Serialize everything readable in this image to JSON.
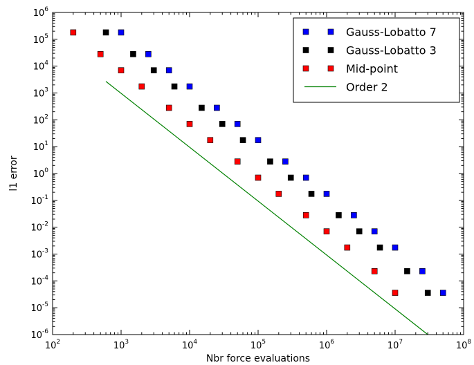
{
  "chart_data": {
    "type": "scatter",
    "xscale": "log",
    "yscale": "log",
    "xlim": [
      100,
      100000000
    ],
    "ylim": [
      1e-06,
      1000000
    ],
    "xlabel": "Nbr force evaluations",
    "ylabel": "l1 error",
    "grid": false,
    "legend_position": "top-right",
    "x_ticks": [
      {
        "base": "10",
        "exp": "2"
      },
      {
        "base": "10",
        "exp": "3"
      },
      {
        "base": "10",
        "exp": "4"
      },
      {
        "base": "10",
        "exp": "5"
      },
      {
        "base": "10",
        "exp": "6"
      },
      {
        "base": "10",
        "exp": "7"
      },
      {
        "base": "10",
        "exp": "8"
      }
    ],
    "y_ticks": [
      {
        "base": "10",
        "exp": "-6"
      },
      {
        "base": "10",
        "exp": "-5"
      },
      {
        "base": "10",
        "exp": "-4"
      },
      {
        "base": "10",
        "exp": "-3"
      },
      {
        "base": "10",
        "exp": "-2"
      },
      {
        "base": "10",
        "exp": "-1"
      },
      {
        "base": "10",
        "exp": "0"
      },
      {
        "base": "10",
        "exp": "1"
      },
      {
        "base": "10",
        "exp": "2"
      },
      {
        "base": "10",
        "exp": "3"
      },
      {
        "base": "10",
        "exp": "4"
      },
      {
        "base": "10",
        "exp": "5"
      },
      {
        "base": "10",
        "exp": "6"
      }
    ],
    "series": [
      {
        "name": "Gauss-Lobatto 7",
        "marker": "square",
        "color": "#0000ff",
        "x": [
          1000,
          2500,
          5000,
          10000,
          25000,
          50000,
          100000,
          250000,
          500000,
          1000000,
          2500000,
          5000000,
          10000000,
          25000000,
          50000000
        ],
        "y": [
          180000,
          28000,
          7000,
          1750,
          280,
          70,
          17.5,
          2.8,
          0.7,
          0.175,
          0.028,
          0.007,
          0.00175,
          0.00023,
          3.6e-05
        ]
      },
      {
        "name": "Gauss-Lobatto 3",
        "marker": "square",
        "color": "#000000",
        "x": [
          600,
          1500,
          3000,
          6000,
          15000,
          30000,
          60000,
          150000,
          300000,
          600000,
          1500000,
          3000000,
          6000000,
          15000000,
          30000000
        ],
        "y": [
          180000,
          28000,
          7000,
          1750,
          280,
          70,
          17.5,
          2.8,
          0.7,
          0.175,
          0.028,
          0.007,
          0.00175,
          0.00023,
          3.6e-05
        ]
      },
      {
        "name": "Mid-point",
        "marker": "square",
        "color": "#ff0000",
        "x": [
          200,
          500,
          1000,
          2000,
          5000,
          10000,
          20000,
          50000,
          100000,
          200000,
          500000,
          1000000,
          2000000,
          5000000,
          10000000
        ],
        "y": [
          180000,
          28000,
          7000,
          1750,
          280,
          70,
          17.5,
          2.8,
          0.7,
          0.175,
          0.028,
          0.007,
          0.00175,
          0.00023,
          3.6e-05
        ]
      },
      {
        "name": "Order 2",
        "marker": "line",
        "color": "#008000",
        "x": [
          600,
          30000000
        ],
        "y": [
          2700,
          1e-06
        ]
      }
    ]
  }
}
